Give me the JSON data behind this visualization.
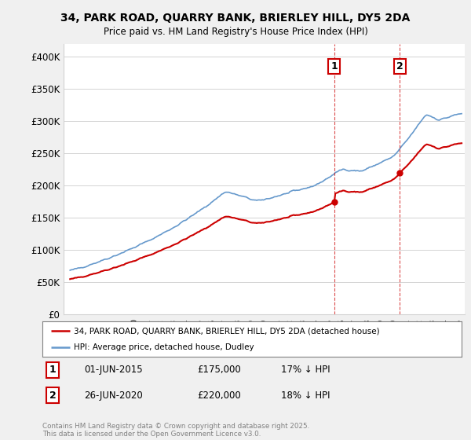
{
  "title": "34, PARK ROAD, QUARRY BANK, BRIERLEY HILL, DY5 2DA",
  "subtitle": "Price paid vs. HM Land Registry's House Price Index (HPI)",
  "ylabel_ticks": [
    "£0",
    "£50K",
    "£100K",
    "£150K",
    "£200K",
    "£250K",
    "£300K",
    "£350K",
    "£400K"
  ],
  "ytick_values": [
    0,
    50000,
    100000,
    150000,
    200000,
    250000,
    300000,
    350000,
    400000
  ],
  "ylim": [
    0,
    420000
  ],
  "xlim_start": 1994.5,
  "xlim_end": 2025.5,
  "purchase1": {
    "date": "01-JUN-2015",
    "price": 175000,
    "hpi_diff": "17% ↓ HPI",
    "label": "1",
    "x": 2015.42
  },
  "purchase2": {
    "date": "26-JUN-2020",
    "price": 220000,
    "hpi_diff": "18% ↓ HPI",
    "label": "2",
    "x": 2020.48
  },
  "legend_property": "34, PARK ROAD, QUARRY BANK, BRIERLEY HILL, DY5 2DA (detached house)",
  "legend_hpi": "HPI: Average price, detached house, Dudley",
  "footer": "Contains HM Land Registry data © Crown copyright and database right 2025.\nThis data is licensed under the Open Government Licence v3.0.",
  "property_color": "#cc0000",
  "hpi_color": "#6699cc",
  "bg_color": "#f0f0f0",
  "plot_bg": "#ffffff"
}
